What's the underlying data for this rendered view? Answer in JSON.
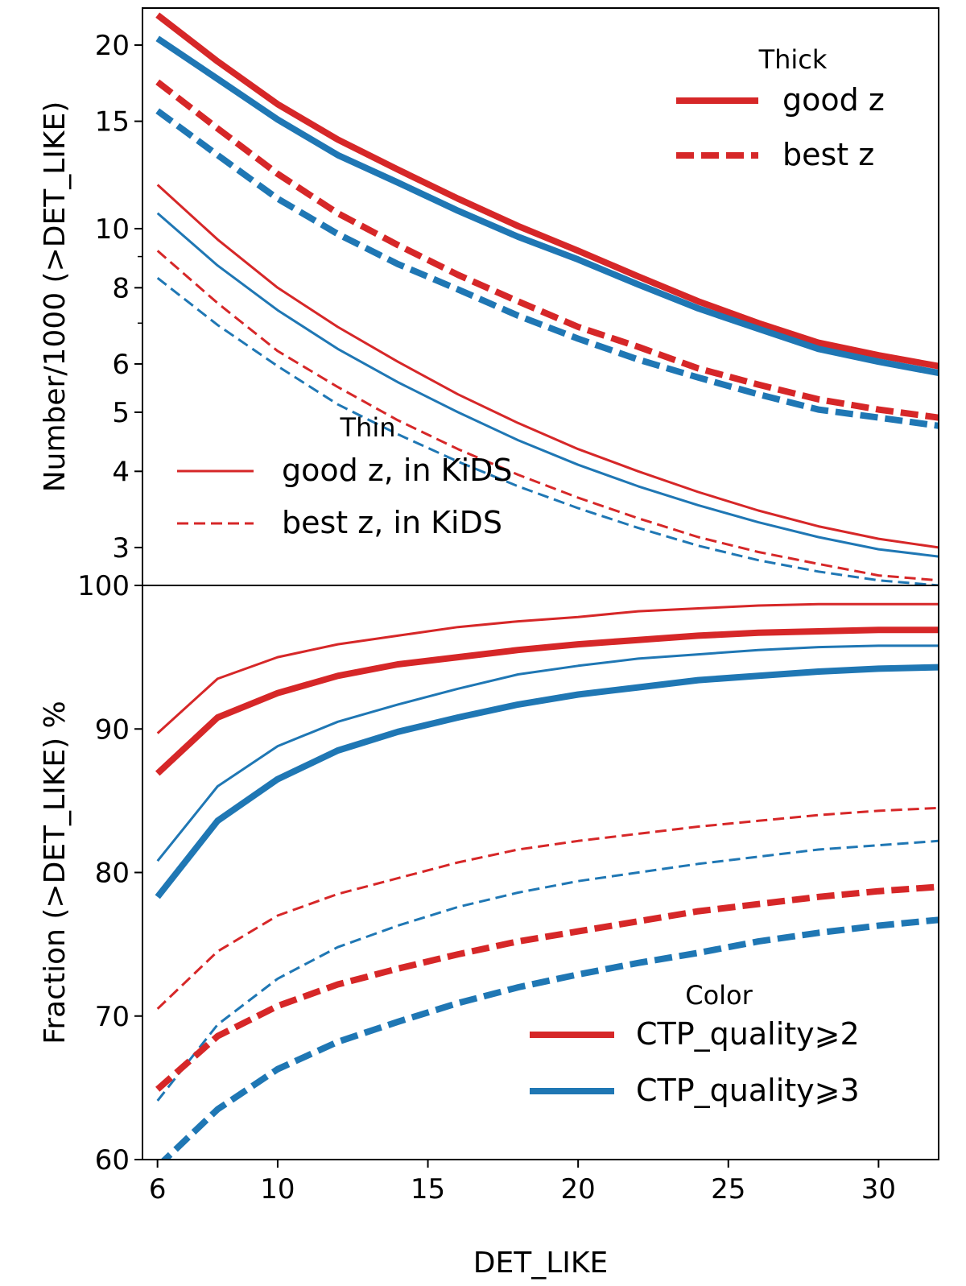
{
  "chart_data": [
    {
      "type": "line",
      "panel": "top",
      "yscale": "log",
      "ylabel": "Number/1000 (>DET_LIKE)",
      "xlim": [
        5.5,
        32
      ],
      "ylim": [
        2.6,
        23
      ],
      "yticks": [
        {
          "value": 3,
          "label": "3"
        },
        {
          "value": 4,
          "label": "4"
        },
        {
          "value": 5,
          "label": "5"
        },
        {
          "value": 6,
          "label": "6"
        },
        {
          "value": 8,
          "label": "8"
        },
        {
          "value": 10,
          "label": "10"
        },
        {
          "value": 15,
          "label": "15"
        },
        {
          "value": 20,
          "label": "20"
        }
      ],
      "yminor": [
        7,
        9
      ],
      "x": [
        6,
        8,
        10,
        12,
        14,
        16,
        18,
        20,
        22,
        24,
        26,
        28,
        30,
        32
      ],
      "series": [
        {
          "name": "good z, CTP_quality≥2",
          "width": "thick",
          "style": "solid",
          "color": "#d62728",
          "values": [
            22.4,
            18.8,
            16.0,
            14.0,
            12.5,
            11.2,
            10.1,
            9.2,
            8.35,
            7.6,
            7.0,
            6.5,
            6.2,
            5.95
          ]
        },
        {
          "name": "good z, CTP_quality≥3",
          "width": "thick",
          "style": "solid",
          "color": "#1f77b4",
          "values": [
            20.5,
            17.6,
            15.1,
            13.2,
            11.9,
            10.7,
            9.7,
            8.9,
            8.1,
            7.4,
            6.85,
            6.35,
            6.05,
            5.8
          ]
        },
        {
          "name": "best z, CTP_quality≥2",
          "width": "thick",
          "style": "dashed",
          "color": "#d62728",
          "values": [
            17.4,
            14.6,
            12.3,
            10.6,
            9.4,
            8.4,
            7.6,
            6.9,
            6.4,
            5.9,
            5.55,
            5.25,
            5.05,
            4.9
          ]
        },
        {
          "name": "best z, CTP_quality≥3",
          "width": "thick",
          "style": "dashed",
          "color": "#1f77b4",
          "values": [
            15.6,
            13.2,
            11.2,
            9.8,
            8.75,
            7.95,
            7.2,
            6.6,
            6.1,
            5.7,
            5.35,
            5.05,
            4.9,
            4.75
          ]
        },
        {
          "name": "good z, in KiDS, CTP_quality≥2",
          "width": "thin",
          "style": "solid",
          "color": "#d62728",
          "values": [
            11.8,
            9.6,
            8.0,
            6.9,
            6.05,
            5.35,
            4.8,
            4.35,
            4.0,
            3.7,
            3.45,
            3.25,
            3.1,
            3.0
          ]
        },
        {
          "name": "good z, in KiDS, CTP_quality≥3",
          "width": "thin",
          "style": "solid",
          "color": "#1f77b4",
          "values": [
            10.6,
            8.7,
            7.35,
            6.35,
            5.6,
            5.0,
            4.5,
            4.1,
            3.78,
            3.52,
            3.3,
            3.12,
            2.98,
            2.9
          ]
        },
        {
          "name": "best z, in KiDS, CTP_quality≥2",
          "width": "thin",
          "style": "dashed",
          "color": "#d62728",
          "values": [
            9.2,
            7.55,
            6.3,
            5.5,
            4.85,
            4.35,
            3.95,
            3.62,
            3.35,
            3.12,
            2.95,
            2.82,
            2.7,
            2.65
          ]
        },
        {
          "name": "best z, in KiDS, CTP_quality≥3",
          "width": "thin",
          "style": "dashed",
          "color": "#1f77b4",
          "values": [
            8.3,
            6.95,
            5.95,
            5.15,
            4.6,
            4.15,
            3.78,
            3.48,
            3.23,
            3.02,
            2.86,
            2.74,
            2.65,
            2.6
          ]
        }
      ],
      "legends": [
        {
          "title": "Thick",
          "placement": "top-right",
          "entries": [
            {
              "label": "good z",
              "style": "solid",
              "width": "thick",
              "color": "#d62728"
            },
            {
              "label": "best z",
              "style": "dashed",
              "width": "thick",
              "color": "#d62728"
            }
          ]
        },
        {
          "title": "Thin",
          "placement": "lower-left",
          "entries": [
            {
              "label": "good z, in KiDS",
              "style": "solid",
              "width": "thin",
              "color": "#d62728"
            },
            {
              "label": "best z, in KiDS",
              "style": "dashed",
              "width": "thin",
              "color": "#d62728"
            }
          ]
        }
      ]
    },
    {
      "type": "line",
      "panel": "bottom",
      "yscale": "linear",
      "xlabel": "DET_LIKE",
      "ylabel": "Fraction (>DET_LIKE) %",
      "xlim": [
        5.5,
        32
      ],
      "ylim": [
        60,
        100
      ],
      "xticks": [
        {
          "value": 6,
          "label": "6"
        },
        {
          "value": 10,
          "label": "10"
        },
        {
          "value": 15,
          "label": "15"
        },
        {
          "value": 20,
          "label": "20"
        },
        {
          "value": 25,
          "label": "25"
        },
        {
          "value": 30,
          "label": "30"
        }
      ],
      "yticks": [
        {
          "value": 60,
          "label": "60"
        },
        {
          "value": 70,
          "label": "70"
        },
        {
          "value": 80,
          "label": "80"
        },
        {
          "value": 90,
          "label": "90"
        },
        {
          "value": 100,
          "label": "100"
        }
      ],
      "x": [
        6,
        8,
        10,
        12,
        14,
        16,
        18,
        20,
        22,
        24,
        26,
        28,
        30,
        32
      ],
      "series": [
        {
          "name": "good z, in KiDS, CTP_quality≥2",
          "width": "thin",
          "style": "solid",
          "color": "#d62728",
          "values": [
            89.7,
            93.5,
            95.0,
            95.9,
            96.5,
            97.1,
            97.5,
            97.8,
            98.2,
            98.4,
            98.6,
            98.7,
            98.7,
            98.7
          ]
        },
        {
          "name": "good z, CTP_quality≥2",
          "width": "thick",
          "style": "solid",
          "color": "#d62728",
          "values": [
            86.9,
            90.8,
            92.5,
            93.7,
            94.5,
            95.0,
            95.5,
            95.9,
            96.2,
            96.5,
            96.7,
            96.8,
            96.9,
            96.9
          ]
        },
        {
          "name": "good z, in KiDS, CTP_quality≥3",
          "width": "thin",
          "style": "solid",
          "color": "#1f77b4",
          "values": [
            80.8,
            86.0,
            88.8,
            90.5,
            91.7,
            92.8,
            93.8,
            94.4,
            94.9,
            95.2,
            95.5,
            95.7,
            95.8,
            95.8
          ]
        },
        {
          "name": "good z, CTP_quality≥3",
          "width": "thick",
          "style": "solid",
          "color": "#1f77b4",
          "values": [
            78.3,
            83.6,
            86.5,
            88.5,
            89.8,
            90.8,
            91.7,
            92.4,
            92.9,
            93.4,
            93.7,
            94.0,
            94.2,
            94.3
          ]
        },
        {
          "name": "best z, in KiDS, CTP_quality≥2",
          "width": "thin",
          "style": "dashed",
          "color": "#d62728",
          "values": [
            70.5,
            74.5,
            77.0,
            78.5,
            79.6,
            80.7,
            81.6,
            82.2,
            82.7,
            83.2,
            83.6,
            84.0,
            84.3,
            84.5
          ]
        },
        {
          "name": "best z, in KiDS, CTP_quality≥3",
          "width": "thin",
          "style": "dashed",
          "color": "#1f77b4",
          "values": [
            64.1,
            69.4,
            72.6,
            74.8,
            76.3,
            77.6,
            78.6,
            79.4,
            80.0,
            80.6,
            81.1,
            81.6,
            81.9,
            82.2
          ]
        },
        {
          "name": "best z, CTP_quality≥2",
          "width": "thick",
          "style": "dashed",
          "color": "#d62728",
          "values": [
            64.9,
            68.6,
            70.7,
            72.2,
            73.3,
            74.3,
            75.2,
            75.9,
            76.6,
            77.3,
            77.8,
            78.3,
            78.7,
            79.0
          ]
        },
        {
          "name": "best z, CTP_quality≥3",
          "width": "thick",
          "style": "dashed",
          "color": "#1f77b4",
          "values": [
            59.5,
            63.5,
            66.3,
            68.2,
            69.6,
            70.9,
            72.0,
            72.9,
            73.7,
            74.4,
            75.2,
            75.8,
            76.3,
            76.7
          ]
        }
      ],
      "legends": [
        {
          "title": "Color",
          "placement": "lower-right",
          "entries": [
            {
              "label": "CTP_quality⩾2",
              "style": "solid",
              "width": "thick",
              "color": "#d62728"
            },
            {
              "label": "CTP_quality⩾3",
              "style": "solid",
              "width": "thick",
              "color": "#1f77b4"
            }
          ]
        }
      ]
    }
  ]
}
